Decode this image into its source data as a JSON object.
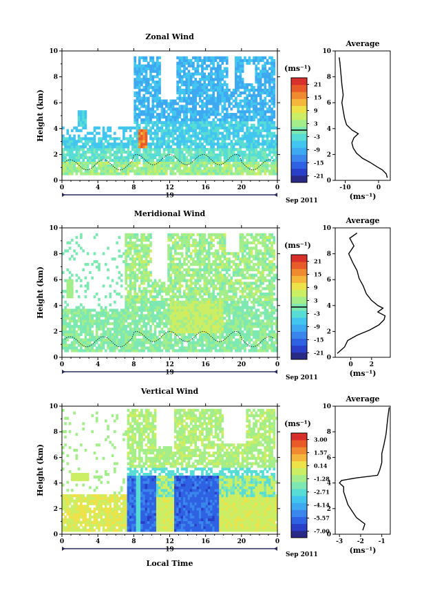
{
  "figure": {
    "xlabel": "Local Time",
    "date_label": "Sep 2011",
    "day_label": "19",
    "avg_unit": "(ms⁻¹)"
  },
  "chart_data": [
    {
      "type": "heatmap",
      "title": "Zonal Wind",
      "ylabel": "Height (km)",
      "x_ticks": [
        "0",
        "4",
        "8",
        "12",
        "16",
        "20",
        "0"
      ],
      "y_ticks": [
        "0",
        "2",
        "4",
        "6",
        "8",
        "10"
      ],
      "xlim": [
        0,
        24
      ],
      "ylim": [
        0,
        10
      ],
      "colorbar": {
        "unit": "(ms⁻¹)",
        "ticks": [
          "21",
          "15",
          "9",
          "3",
          "-3",
          "-9",
          "-15",
          "-21"
        ],
        "range": [
          -24,
          24
        ]
      },
      "average": {
        "title": "Average",
        "xlabel": "(ms⁻¹)",
        "x_ticks": [
          "-10",
          "0"
        ],
        "x_tick_values": [
          -10,
          0
        ],
        "xlim": [
          -13,
          3.5
        ],
        "y_ticks": [
          "0",
          "2",
          "4",
          "6",
          "8",
          "10"
        ],
        "profile": [
          [
            2.6,
            0.2
          ],
          [
            2.3,
            0.5
          ],
          [
            1.2,
            0.8
          ],
          [
            -0.8,
            1.1
          ],
          [
            -2.6,
            1.4
          ],
          [
            -4.8,
            1.7
          ],
          [
            -6.6,
            2.1
          ],
          [
            -7.6,
            2.5
          ],
          [
            -8.0,
            2.9
          ],
          [
            -7.4,
            3.3
          ],
          [
            -6.1,
            3.6
          ],
          [
            -8.0,
            3.9
          ],
          [
            -9.6,
            4.3
          ],
          [
            -10.2,
            4.8
          ],
          [
            -10.6,
            5.4
          ],
          [
            -11.0,
            6.0
          ],
          [
            -10.6,
            6.6
          ],
          [
            -11.0,
            7.4
          ],
          [
            -11.3,
            8.3
          ],
          [
            -11.6,
            9.1
          ],
          [
            -11.8,
            9.5
          ]
        ]
      }
    },
    {
      "type": "heatmap",
      "title": "Meridional Wind",
      "ylabel": "Height (km)",
      "x_ticks": [
        "0",
        "4",
        "8",
        "12",
        "16",
        "20",
        "0"
      ],
      "y_ticks": [
        "0",
        "2",
        "4",
        "6",
        "8",
        "10"
      ],
      "xlim": [
        0,
        24
      ],
      "ylim": [
        0,
        10
      ],
      "colorbar": {
        "unit": "(ms⁻¹)",
        "ticks": [
          "21",
          "15",
          "9",
          "3",
          "-3",
          "-9",
          "-15",
          "-21"
        ],
        "range": [
          -24,
          24
        ]
      },
      "average": {
        "title": "Average",
        "xlabel": "(ms⁻¹)",
        "x_ticks": [
          "0",
          "2"
        ],
        "x_tick_values": [
          0,
          2
        ],
        "xlim": [
          -1.5,
          3.8
        ],
        "y_ticks": [
          "0",
          "2",
          "4",
          "6",
          "8",
          "10"
        ],
        "profile": [
          [
            -1.3,
            0.3
          ],
          [
            -0.6,
            0.8
          ],
          [
            -0.3,
            1.3
          ],
          [
            0.6,
            1.7
          ],
          [
            1.8,
            2.1
          ],
          [
            2.7,
            2.5
          ],
          [
            3.2,
            2.9
          ],
          [
            3.3,
            3.2
          ],
          [
            2.6,
            3.5
          ],
          [
            3.1,
            3.8
          ],
          [
            2.6,
            4.0
          ],
          [
            2.0,
            4.4
          ],
          [
            1.5,
            4.9
          ],
          [
            1.2,
            5.5
          ],
          [
            0.8,
            6.1
          ],
          [
            0.6,
            6.7
          ],
          [
            0.2,
            7.3
          ],
          [
            -0.2,
            8.0
          ],
          [
            0.3,
            8.6
          ],
          [
            -0.1,
            9.2
          ],
          [
            0.6,
            9.6
          ]
        ]
      }
    },
    {
      "type": "heatmap",
      "title": "Vertical Wind",
      "ylabel": "Height (km)",
      "x_ticks": [
        "0",
        "4",
        "8",
        "12",
        "16",
        "20",
        "0"
      ],
      "y_ticks": [
        "0",
        "2",
        "4",
        "6",
        "8",
        "10"
      ],
      "xlim": [
        0,
        24
      ],
      "ylim": [
        0,
        10
      ],
      "colorbar": {
        "unit": "(ms⁻¹)",
        "ticks": [
          "3.00",
          "1.57",
          "0.14",
          "-1.28",
          "-2.71",
          "-4.14",
          "-5.57",
          "-7.00"
        ],
        "range": [
          -7.71,
          3.71
        ]
      },
      "average": {
        "title": "Average",
        "xlabel": "(ms⁻¹)",
        "x_ticks": [
          "-3",
          "-2",
          "-1"
        ],
        "x_tick_values": [
          -3,
          -2,
          -1
        ],
        "xlim": [
          -3.2,
          -0.6
        ],
        "y_ticks": [
          "0",
          "2",
          "4",
          "6",
          "8",
          "10"
        ],
        "profile": [
          [
            -1.9,
            0.3
          ],
          [
            -1.8,
            0.8
          ],
          [
            -2.2,
            1.3
          ],
          [
            -2.4,
            1.8
          ],
          [
            -2.6,
            2.3
          ],
          [
            -2.7,
            2.8
          ],
          [
            -2.8,
            3.3
          ],
          [
            -2.8,
            3.7
          ],
          [
            -3.0,
            4.0
          ],
          [
            -2.9,
            4.2
          ],
          [
            -2.2,
            4.4
          ],
          [
            -1.2,
            4.6
          ],
          [
            -1.1,
            5.0
          ],
          [
            -1.0,
            5.6
          ],
          [
            -1.0,
            6.3
          ],
          [
            -0.9,
            7.0
          ],
          [
            -0.8,
            7.8
          ],
          [
            -0.75,
            8.6
          ],
          [
            -0.7,
            9.3
          ],
          [
            -0.65,
            9.9
          ]
        ]
      }
    }
  ]
}
